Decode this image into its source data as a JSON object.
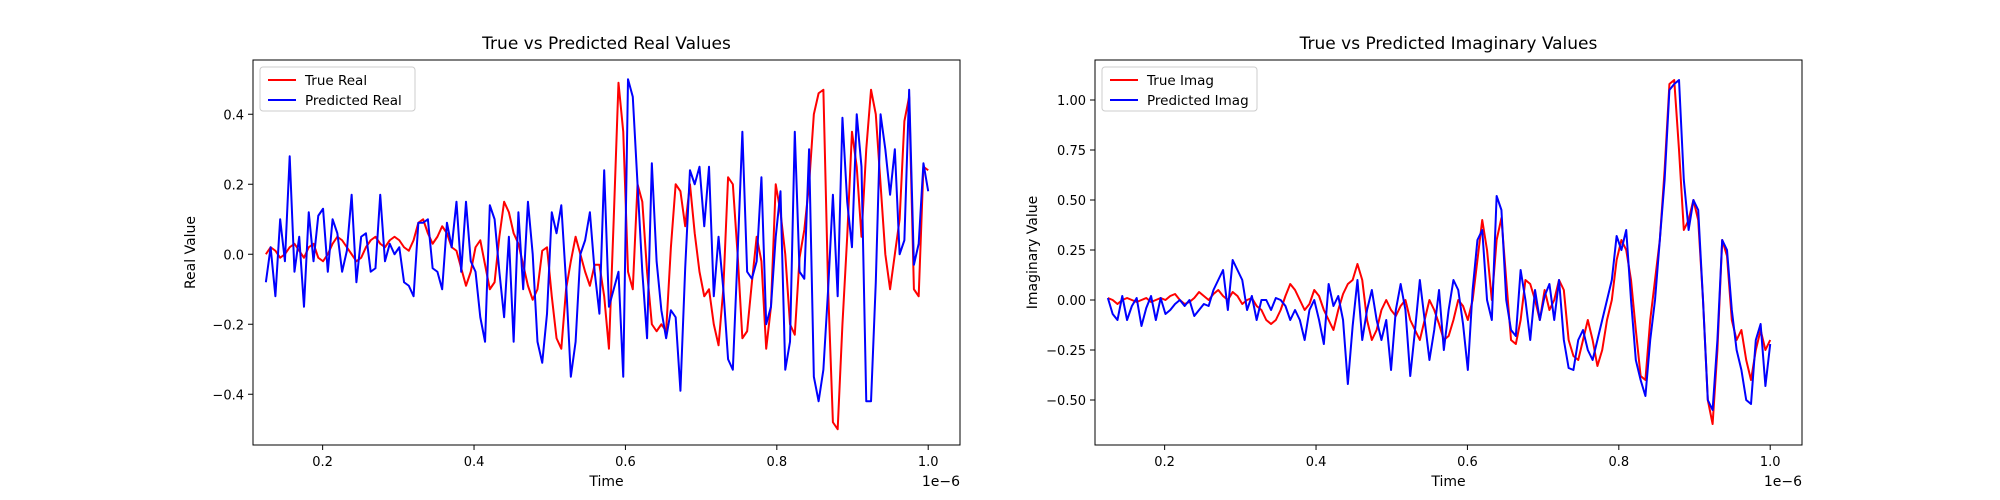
{
  "chart_data": [
    {
      "type": "line",
      "title": "True vs Predicted Real Values",
      "xlabel": "Time",
      "ylabel": "Real Value",
      "x_offset_label": "1e−6",
      "xlim": [
        0.108,
        1.042
      ],
      "ylim": [
        -0.545,
        0.555
      ],
      "xticks": [
        0.2,
        0.4,
        0.6,
        0.8,
        1.0
      ],
      "xtick_labels": [
        "0.2",
        "0.4",
        "0.6",
        "0.8",
        "1.0"
      ],
      "yticks": [
        -0.4,
        -0.2,
        0.0,
        0.2,
        0.4
      ],
      "ytick_labels": [
        "−0.4",
        "−0.2",
        "0.0",
        "0.2",
        "0.4"
      ],
      "legend": "top-left",
      "grid": false,
      "x_start": 0.125,
      "x_end": 1.0,
      "series": [
        {
          "name": "True Real",
          "color": "#ff0000",
          "values": [
            0.0,
            0.02,
            0.01,
            -0.01,
            0.0,
            0.02,
            0.03,
            0.01,
            -0.01,
            0.02,
            0.03,
            -0.01,
            -0.02,
            0.0,
            0.03,
            0.05,
            0.04,
            0.02,
            0.0,
            -0.02,
            -0.01,
            0.02,
            0.04,
            0.05,
            0.03,
            0.02,
            0.04,
            0.05,
            0.04,
            0.02,
            0.01,
            0.04,
            0.09,
            0.1,
            0.06,
            0.03,
            0.05,
            0.08,
            0.06,
            0.02,
            0.01,
            -0.04,
            -0.09,
            -0.05,
            0.02,
            0.04,
            -0.03,
            -0.1,
            -0.08,
            0.05,
            0.15,
            0.12,
            0.06,
            0.03,
            -0.03,
            -0.09,
            -0.13,
            -0.1,
            0.01,
            0.02,
            -0.12,
            -0.24,
            -0.27,
            -0.1,
            -0.02,
            0.05,
            0.0,
            -0.05,
            -0.09,
            -0.03,
            -0.03,
            -0.12,
            -0.27,
            0.1,
            0.49,
            0.35,
            -0.05,
            -0.1,
            0.2,
            0.15,
            -0.05,
            -0.2,
            -0.22,
            -0.2,
            -0.22,
            0.02,
            0.2,
            0.18,
            0.08,
            0.2,
            0.06,
            -0.05,
            -0.12,
            -0.1,
            -0.2,
            -0.26,
            -0.1,
            0.22,
            0.2,
            0.0,
            -0.24,
            -0.22,
            -0.08,
            0.05,
            -0.02,
            -0.27,
            -0.15,
            0.2,
            0.12,
            0.0,
            -0.2,
            -0.23,
            -0.01,
            0.07,
            0.2,
            0.4,
            0.46,
            0.47,
            -0.1,
            -0.48,
            -0.5,
            -0.2,
            0.05,
            0.35,
            0.25,
            0.05,
            0.3,
            0.47,
            0.4,
            0.2,
            0.0,
            -0.1,
            0.0,
            0.1,
            0.38,
            0.45,
            -0.1,
            -0.12,
            0.25,
            0.24
          ]
        },
        {
          "name": "Predicted Real",
          "color": "#0000ff",
          "values": [
            -0.08,
            0.02,
            -0.12,
            0.1,
            -0.02,
            0.28,
            -0.05,
            0.05,
            -0.15,
            0.12,
            -0.02,
            0.11,
            0.13,
            -0.05,
            0.1,
            0.06,
            -0.05,
            0.01,
            0.17,
            -0.08,
            0.05,
            0.06,
            -0.05,
            -0.04,
            0.17,
            -0.02,
            0.03,
            0.0,
            0.02,
            -0.08,
            -0.09,
            -0.12,
            0.09,
            0.09,
            0.1,
            -0.04,
            -0.05,
            -0.1,
            0.09,
            0.02,
            0.15,
            -0.05,
            0.15,
            -0.02,
            -0.05,
            -0.18,
            -0.25,
            0.14,
            0.1,
            -0.05,
            -0.18,
            0.05,
            -0.25,
            0.12,
            -0.1,
            0.15,
            0.0,
            -0.25,
            -0.31,
            -0.17,
            0.12,
            0.06,
            0.14,
            -0.08,
            -0.35,
            -0.25,
            0.0,
            0.04,
            0.12,
            -0.05,
            -0.17,
            0.24,
            -0.15,
            -0.1,
            -0.05,
            -0.35,
            0.5,
            0.45,
            0.2,
            -0.05,
            -0.24,
            0.26,
            -0.02,
            -0.16,
            -0.24,
            -0.16,
            -0.18,
            -0.39,
            -0.04,
            0.24,
            0.2,
            0.25,
            0.08,
            0.25,
            -0.12,
            0.05,
            -0.1,
            -0.3,
            -0.33,
            0.0,
            0.35,
            -0.05,
            -0.07,
            -0.02,
            0.22,
            -0.2,
            -0.15,
            0.05,
            0.18,
            -0.33,
            -0.25,
            0.35,
            -0.05,
            -0.07,
            0.3,
            -0.35,
            -0.42,
            -0.33,
            -0.1,
            0.17,
            -0.12,
            0.39,
            0.15,
            0.02,
            0.4,
            0.25,
            -0.42,
            -0.42,
            -0.08,
            0.4,
            0.3,
            0.17,
            0.3,
            0.0,
            0.04,
            0.47,
            -0.03,
            0.03,
            0.26,
            0.18
          ]
        }
      ]
    },
    {
      "type": "line",
      "title": "True vs Predicted Imaginary Values",
      "xlabel": "Time",
      "ylabel": "Imaginary Value",
      "x_offset_label": "1e−6",
      "xlim": [
        0.108,
        1.042
      ],
      "ylim": [
        -0.725,
        1.2
      ],
      "xticks": [
        0.2,
        0.4,
        0.6,
        0.8,
        1.0
      ],
      "xtick_labels": [
        "0.2",
        "0.4",
        "0.6",
        "0.8",
        "1.0"
      ],
      "yticks": [
        -0.5,
        -0.25,
        0.0,
        0.25,
        0.5,
        0.75,
        1.0
      ],
      "ytick_labels": [
        "−0.50",
        "−0.25",
        "0.00",
        "0.25",
        "0.50",
        "0.75",
        "1.00"
      ],
      "legend": "top-left",
      "grid": false,
      "x_start": 0.125,
      "x_end": 1.0,
      "series": [
        {
          "name": "True Imag",
          "color": "#ff0000",
          "values": [
            0.01,
            0.0,
            -0.02,
            0.0,
            0.01,
            0.0,
            -0.01,
            0.0,
            0.01,
            -0.01,
            0.0,
            0.01,
            0.0,
            0.02,
            0.03,
            0.0,
            -0.02,
            -0.01,
            0.01,
            0.04,
            0.02,
            0.0,
            0.03,
            0.05,
            0.02,
            0.0,
            0.04,
            0.02,
            -0.02,
            0.0,
            0.01,
            -0.03,
            -0.05,
            -0.1,
            -0.12,
            -0.1,
            -0.05,
            0.02,
            0.08,
            0.05,
            0.0,
            -0.05,
            -0.02,
            0.05,
            0.02,
            -0.05,
            -0.1,
            -0.15,
            -0.05,
            0.03,
            0.08,
            0.1,
            0.18,
            0.1,
            -0.1,
            -0.2,
            -0.15,
            -0.05,
            0.0,
            -0.05,
            -0.08,
            -0.03,
            0.0,
            -0.1,
            -0.15,
            -0.2,
            -0.1,
            0.0,
            -0.05,
            -0.12,
            -0.2,
            -0.18,
            -0.1,
            0.0,
            -0.03,
            -0.1,
            0.0,
            0.2,
            0.4,
            0.25,
            0.0,
            0.3,
            0.41,
            0.1,
            -0.2,
            -0.22,
            -0.1,
            0.1,
            0.08,
            0.0,
            -0.1,
            0.05,
            -0.05,
            0.0,
            0.1,
            0.05,
            -0.2,
            -0.28,
            -0.3,
            -0.2,
            -0.1,
            -0.2,
            -0.33,
            -0.25,
            -0.1,
            0.0,
            0.2,
            0.3,
            0.25,
            0.1,
            -0.15,
            -0.38,
            -0.4,
            -0.1,
            0.1,
            0.3,
            0.65,
            1.08,
            1.1,
            0.75,
            0.35,
            0.4,
            0.5,
            0.4,
            0.0,
            -0.5,
            -0.62,
            -0.25,
            0.3,
            0.22,
            -0.1,
            -0.2,
            -0.15,
            -0.3,
            -0.4,
            -0.25,
            -0.15,
            -0.25,
            -0.2
          ]
        },
        {
          "name": "Predicted Imag",
          "color": "#0000ff",
          "values": [
            0.01,
            -0.07,
            -0.1,
            0.02,
            -0.1,
            -0.03,
            0.01,
            -0.13,
            -0.04,
            0.02,
            -0.1,
            0.01,
            -0.07,
            -0.05,
            -0.02,
            0.0,
            -0.03,
            0.0,
            -0.08,
            -0.05,
            -0.02,
            -0.03,
            0.05,
            0.1,
            0.15,
            -0.05,
            0.2,
            0.15,
            0.1,
            -0.05,
            0.02,
            -0.1,
            0.0,
            0.0,
            -0.05,
            0.01,
            0.0,
            -0.03,
            -0.1,
            -0.05,
            -0.1,
            -0.2,
            -0.05,
            0.0,
            -0.1,
            -0.22,
            0.08,
            -0.03,
            0.02,
            -0.1,
            -0.42,
            -0.13,
            0.1,
            -0.2,
            -0.05,
            0.05,
            -0.1,
            -0.2,
            -0.1,
            -0.35,
            -0.05,
            0.08,
            -0.05,
            -0.38,
            -0.15,
            0.1,
            -0.1,
            -0.3,
            -0.15,
            0.05,
            -0.25,
            -0.05,
            0.1,
            0.05,
            -0.12,
            -0.35,
            0.05,
            0.3,
            0.35,
            0.0,
            -0.1,
            0.52,
            0.45,
            0.0,
            -0.15,
            -0.18,
            0.15,
            0.0,
            -0.2,
            0.05,
            -0.1,
            0.02,
            0.08,
            -0.1,
            0.1,
            -0.2,
            -0.34,
            -0.35,
            -0.2,
            -0.15,
            -0.25,
            -0.3,
            -0.2,
            -0.1,
            0.0,
            0.1,
            0.32,
            0.25,
            0.35,
            0.0,
            -0.3,
            -0.4,
            -0.48,
            -0.2,
            0.0,
            0.3,
            0.6,
            1.05,
            1.08,
            1.1,
            0.6,
            0.35,
            0.5,
            0.45,
            0.0,
            -0.5,
            -0.55,
            -0.2,
            0.3,
            0.25,
            -0.05,
            -0.25,
            -0.35,
            -0.5,
            -0.52,
            -0.2,
            -0.12,
            -0.43,
            -0.22
          ]
        }
      ]
    }
  ]
}
